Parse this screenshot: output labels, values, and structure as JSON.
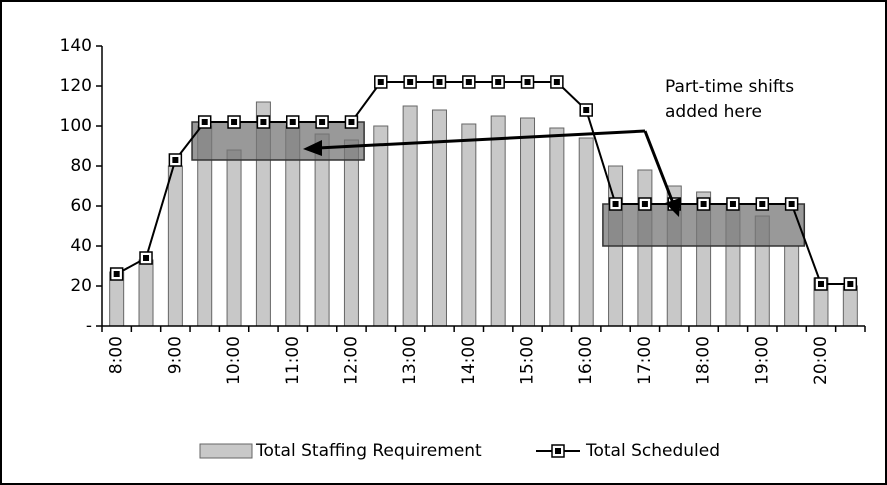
{
  "chart_data": {
    "type": "bar-line",
    "categories": [
      "8:00",
      null,
      "9:00",
      null,
      "10:00",
      null,
      "11:00",
      null,
      "12:00",
      null,
      "13:00",
      null,
      "14:00",
      null,
      "15:00",
      null,
      "16:00",
      null,
      "17:00",
      null,
      "18:00",
      null,
      "19:00",
      null,
      "20:00",
      null
    ],
    "series": [
      {
        "name": "Total Staffing Requirement",
        "color": "#c8c8c8",
        "values": [
          27,
          33,
          80,
          100,
          88,
          112,
          100,
          96,
          93,
          100,
          110,
          108,
          101,
          105,
          104,
          99,
          94,
          80,
          78,
          70,
          67,
          60,
          55,
          40,
          24,
          20
        ]
      },
      {
        "name": "Total Scheduled",
        "color": "#000000",
        "values": [
          26,
          34,
          83,
          102,
          102,
          102,
          102,
          102,
          102,
          122,
          122,
          122,
          122,
          122,
          122,
          122,
          108,
          61,
          61,
          61,
          61,
          61,
          61,
          61,
          21,
          21
        ]
      }
    ],
    "highlights": [
      {
        "from": 3,
        "to": 8,
        "ylim": [
          83,
          102
        ]
      },
      {
        "from": 17,
        "to": 23,
        "ylim": [
          40,
          61
        ]
      }
    ],
    "annotation": [
      "Part-time shifts",
      "added here"
    ],
    "ylim": [
      0,
      140
    ],
    "yticks": [
      {
        "value": 0,
        "label": "-"
      },
      20,
      40,
      60,
      80,
      100,
      120,
      140
    ],
    "grid": false
  }
}
